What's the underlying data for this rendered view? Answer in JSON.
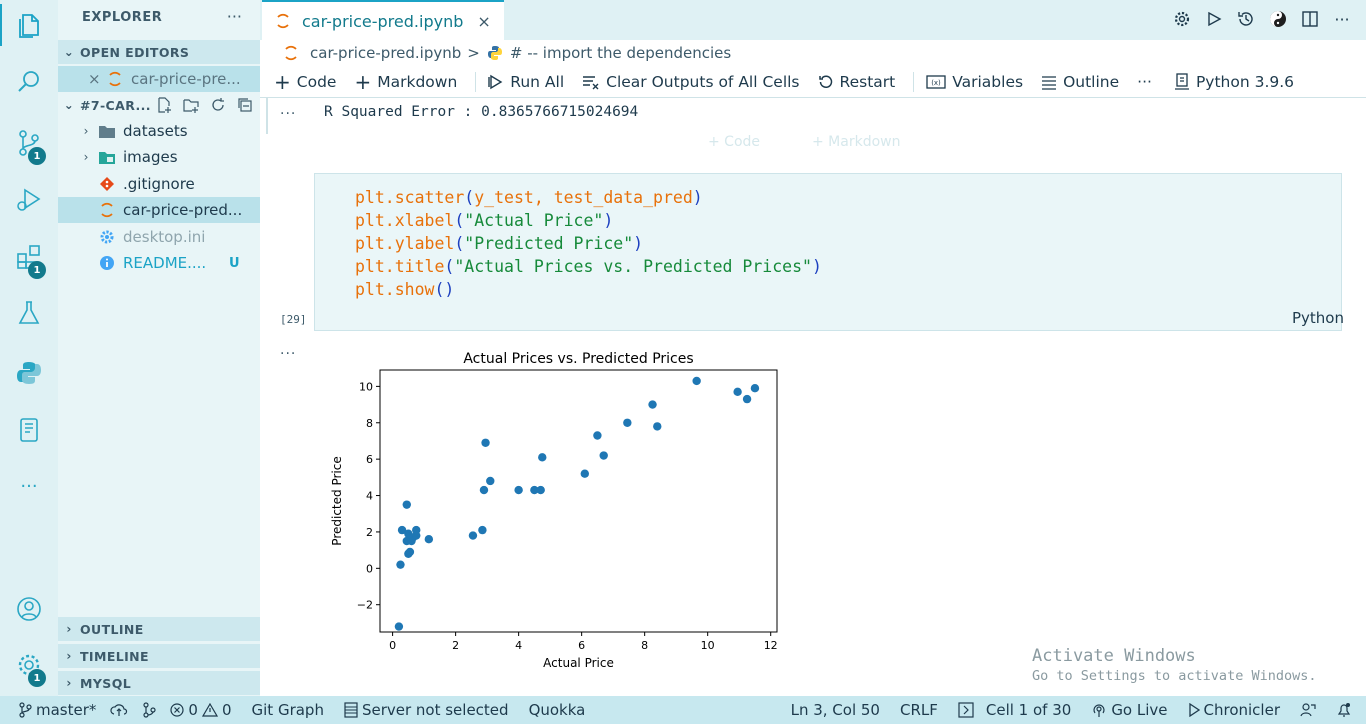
{
  "sidebar": {
    "title": "EXPLORER",
    "more": "···",
    "open_editors": {
      "label": "OPEN EDITORS",
      "items": [
        {
          "close": "×",
          "label": "car-price-pre..."
        }
      ]
    },
    "folder": {
      "label": "#7-CAR...",
      "items": [
        {
          "label": "datasets",
          "type": "folder"
        },
        {
          "label": "images",
          "type": "folder"
        },
        {
          "label": ".gitignore",
          "type": "file"
        },
        {
          "label": "car-price-pred...",
          "type": "notebook"
        },
        {
          "label": "desktop.ini",
          "type": "file"
        },
        {
          "label": "README....",
          "type": "file",
          "status": "U"
        }
      ]
    },
    "sections": [
      "OUTLINE",
      "TIMELINE",
      "MYSQL"
    ]
  },
  "activity": {
    "source_control_badge": "1",
    "extensions_badge": "1",
    "manage_badge": "1",
    "more": "···"
  },
  "tab": {
    "label": "car-price-pred.ipynb",
    "close": "×"
  },
  "breadcrumb": {
    "file": "car-price-pred.ipynb",
    "sep": ">",
    "symbol": "# -- import the dependencies"
  },
  "toolbar": {
    "code": "Code",
    "markdown": "Markdown",
    "run_all": "Run All",
    "clear_outputs": "Clear Outputs of All Cells",
    "restart": "Restart",
    "variables": "Variables",
    "outline": "Outline",
    "more": "···",
    "kernel": "Python 3.9.6"
  },
  "cells": {
    "prev_output": "R Squared Error : 0.8365766715024694",
    "ghost_code": "+ Code",
    "ghost_markdown": "+ Markdown",
    "exec_count": "[29]",
    "language": "Python",
    "ellipsis": "···"
  },
  "code_lines": [
    [
      {
        "t": "plt.scatter",
        "c": "fn"
      },
      {
        "t": "(",
        "c": "pn"
      },
      {
        "t": "y_test, test_data_pred",
        "c": "tx"
      },
      {
        "t": ")",
        "c": "pn"
      }
    ],
    [
      {
        "t": "plt.xlabel",
        "c": "fn"
      },
      {
        "t": "(",
        "c": "pn"
      },
      {
        "t": "\"Actual Price\"",
        "c": "st"
      },
      {
        "t": ")",
        "c": "pn"
      }
    ],
    [
      {
        "t": "plt.ylabel",
        "c": "fn"
      },
      {
        "t": "(",
        "c": "pn"
      },
      {
        "t": "\"Predicted Price\"",
        "c": "st"
      },
      {
        "t": ")",
        "c": "pn"
      }
    ],
    [
      {
        "t": "plt.title",
        "c": "fn"
      },
      {
        "t": "(",
        "c": "pn"
      },
      {
        "t": "\"Actual Prices vs. Predicted Prices\"",
        "c": "st"
      },
      {
        "t": ")",
        "c": "pn"
      }
    ],
    [
      {
        "t": "plt.show",
        "c": "fn"
      },
      {
        "t": "()",
        "c": "pn"
      }
    ]
  ],
  "chart_data": {
    "type": "scatter",
    "title": "Actual Prices vs. Predicted Prices",
    "xlabel": "Actual Price",
    "ylabel": "Predicted Price",
    "xlim": [
      -0.4,
      12.2
    ],
    "ylim": [
      -3.5,
      10.9
    ],
    "xticks": [
      0,
      2,
      4,
      6,
      8,
      10,
      12
    ],
    "yticks": [
      -2,
      0,
      2,
      4,
      6,
      8,
      10
    ],
    "color": "#1f77b4",
    "points": [
      [
        0.2,
        -3.2
      ],
      [
        0.25,
        0.2
      ],
      [
        0.3,
        2.1
      ],
      [
        0.45,
        3.5
      ],
      [
        0.45,
        1.5
      ],
      [
        0.5,
        0.8
      ],
      [
        0.5,
        1.9
      ],
      [
        0.55,
        0.9
      ],
      [
        0.6,
        1.5
      ],
      [
        0.65,
        1.7
      ],
      [
        0.75,
        1.8
      ],
      [
        0.75,
        2.1
      ],
      [
        1.15,
        1.6
      ],
      [
        2.55,
        1.8
      ],
      [
        2.85,
        2.1
      ],
      [
        2.9,
        4.3
      ],
      [
        2.95,
        6.9
      ],
      [
        3.1,
        4.8
      ],
      [
        4.0,
        4.3
      ],
      [
        4.5,
        4.3
      ],
      [
        4.7,
        4.3
      ],
      [
        4.75,
        6.1
      ],
      [
        6.1,
        5.2
      ],
      [
        6.5,
        7.3
      ],
      [
        6.7,
        6.2
      ],
      [
        7.45,
        8.0
      ],
      [
        8.25,
        9.0
      ],
      [
        8.4,
        7.8
      ],
      [
        9.65,
        10.3
      ],
      [
        10.95,
        9.7
      ],
      [
        11.25,
        9.3
      ],
      [
        11.5,
        9.9
      ]
    ]
  },
  "status": {
    "branch": "master*",
    "errors": "0",
    "warnings": "0",
    "git_graph": "Git Graph",
    "server": "Server not selected",
    "quokka": "Quokka",
    "position": "Ln 3, Col 50",
    "eol": "CRLF",
    "cell": "Cell 1 of 30",
    "go_live": "Go Live",
    "chronicler": "Chronicler"
  },
  "watermark": {
    "line1": "Activate Windows",
    "line2": "Go to Settings to activate Windows."
  }
}
